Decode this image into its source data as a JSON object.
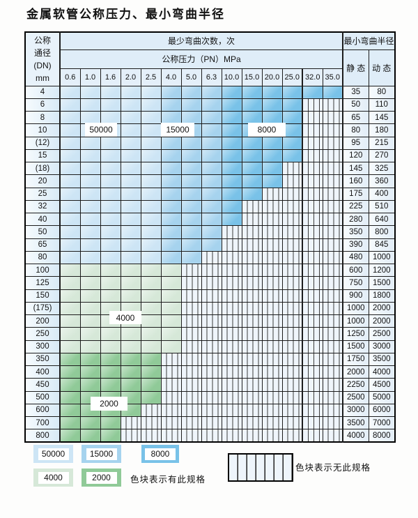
{
  "title": "金属软管公称压力、最小弯曲半径",
  "colors": {
    "cycles_50000": "#cde5f5",
    "cycles_15000": "#a6d3ee",
    "cycles_8000": "#79c2e8",
    "cycles_4000": "#d6e8d8",
    "cycles_2000": "#90ca98",
    "no_spec_bg": "#eff5fb"
  },
  "table": {
    "header": {
      "dn_lines": [
        "公称",
        "通径",
        "(DN)",
        "mm"
      ],
      "cycles_title": "最少弯曲次数，次",
      "pressure_title": "公称压力（PN）MPa",
      "pressures": [
        "0.6",
        "1.0",
        "1.6",
        "2.0",
        "2.5",
        "4.0",
        "5.0",
        "6.3",
        "10.0",
        "15.0",
        "20.0",
        "25.0",
        "32.0",
        "35.0"
      ],
      "radius_title": "最小弯曲半径",
      "static_label": "静 态",
      "dynamic_label": "动 态"
    },
    "rows": [
      {
        "dn": "4",
        "colored": 14,
        "zone": "blue",
        "static": "35",
        "dynamic": "80"
      },
      {
        "dn": "6",
        "colored": 12,
        "zone": "blue",
        "static": "50",
        "dynamic": "110"
      },
      {
        "dn": "8",
        "colored": 12,
        "zone": "blue",
        "static": "65",
        "dynamic": "145"
      },
      {
        "dn": "10",
        "colored": 12,
        "zone": "blue",
        "static": "80",
        "dynamic": "180"
      },
      {
        "dn": "(12)",
        "colored": 12,
        "zone": "blue",
        "static": "95",
        "dynamic": "215"
      },
      {
        "dn": "15",
        "colored": 12,
        "zone": "blue",
        "static": "120",
        "dynamic": "270"
      },
      {
        "dn": "(18)",
        "colored": 11,
        "zone": "blue",
        "static": "145",
        "dynamic": "325"
      },
      {
        "dn": "20",
        "colored": 11,
        "zone": "blue",
        "static": "160",
        "dynamic": "360"
      },
      {
        "dn": "25",
        "colored": 10,
        "zone": "blue",
        "static": "175",
        "dynamic": "400"
      },
      {
        "dn": "32",
        "colored": 9,
        "zone": "blue",
        "static": "225",
        "dynamic": "510"
      },
      {
        "dn": "40",
        "colored": 9,
        "zone": "blue",
        "static": "280",
        "dynamic": "640"
      },
      {
        "dn": "50",
        "colored": 8,
        "zone": "blue",
        "static": "350",
        "dynamic": "800"
      },
      {
        "dn": "65",
        "colored": 8,
        "zone": "blue",
        "static": "390",
        "dynamic": "845"
      },
      {
        "dn": "80",
        "colored": 7,
        "zone": "blue",
        "static": "480",
        "dynamic": "1000"
      },
      {
        "dn": "100",
        "colored": 6,
        "zone": "green4000",
        "static": "600",
        "dynamic": "1200"
      },
      {
        "dn": "125",
        "colored": 6,
        "zone": "green4000",
        "static": "750",
        "dynamic": "1500"
      },
      {
        "dn": "150",
        "colored": 6,
        "zone": "green4000",
        "static": "900",
        "dynamic": "1800"
      },
      {
        "dn": "(175)",
        "colored": 6,
        "zone": "green4000",
        "static": "1000",
        "dynamic": "2000"
      },
      {
        "dn": "200",
        "colored": 6,
        "zone": "green4000",
        "static": "1000",
        "dynamic": "2000"
      },
      {
        "dn": "250",
        "colored": 6,
        "zone": "green4000",
        "static": "1250",
        "dynamic": "2500"
      },
      {
        "dn": "300",
        "colored": 6,
        "zone": "green4000",
        "static": "1500",
        "dynamic": "3000"
      },
      {
        "dn": "350",
        "colored": 5,
        "zone": "green2000",
        "static": "1750",
        "dynamic": "3500"
      },
      {
        "dn": "400",
        "colored": 5,
        "zone": "green2000",
        "static": "2000",
        "dynamic": "4000"
      },
      {
        "dn": "450",
        "colored": 5,
        "zone": "green2000",
        "static": "2250",
        "dynamic": "4500"
      },
      {
        "dn": "500",
        "colored": 5,
        "zone": "green2000",
        "static": "2500",
        "dynamic": "5000"
      },
      {
        "dn": "600",
        "colored": 4,
        "zone": "green2000",
        "static": "3000",
        "dynamic": "6000"
      },
      {
        "dn": "700",
        "colored": 3,
        "zone": "green2000",
        "static": "3500",
        "dynamic": "7000"
      },
      {
        "dn": "800",
        "colored": 3,
        "zone": "green2000",
        "static": "4000",
        "dynamic": "8000"
      }
    ]
  },
  "overlays": {
    "b50000": "50000",
    "b15000": "15000",
    "b8000": "8000",
    "g4000": "4000",
    "g2000": "2000"
  },
  "legend": {
    "items": [
      {
        "value": "50000",
        "zone": "cycles_50000"
      },
      {
        "value": "15000",
        "zone": "cycles_15000"
      },
      {
        "value": "8000",
        "zone": "cycles_8000"
      },
      {
        "value": "4000",
        "zone": "cycles_4000"
      },
      {
        "value": "2000",
        "zone": "cycles_2000"
      }
    ],
    "has_spec_label": "色块表示有此规格",
    "no_spec_label": "色块表示无此规格"
  }
}
